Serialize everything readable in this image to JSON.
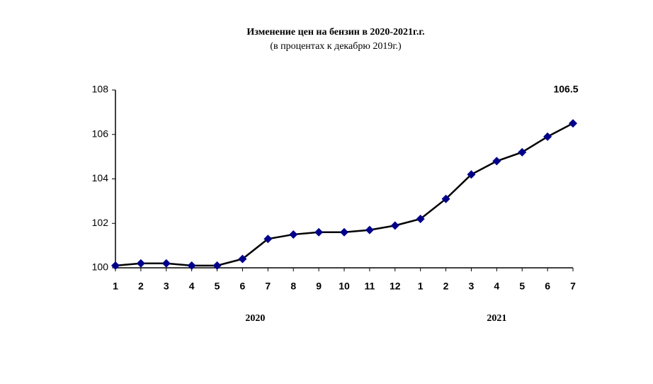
{
  "chart_data": {
    "type": "line",
    "title": "Изменение цен на бензин в 2020-2021г.г.",
    "subtitle": "(в процентах к декабрю 2019г.)",
    "categories": [
      "1",
      "2",
      "3",
      "4",
      "5",
      "6",
      "7",
      "8",
      "9",
      "10",
      "11",
      "12",
      "1",
      "2",
      "3",
      "4",
      "5",
      "6",
      "7"
    ],
    "category_groups": [
      "2020",
      "2021"
    ],
    "values": [
      100.1,
      100.2,
      100.2,
      100.1,
      100.1,
      100.4,
      101.3,
      101.5,
      101.6,
      101.6,
      101.7,
      101.9,
      102.2,
      103.1,
      104.2,
      104.8,
      105.2,
      105.9,
      106.5
    ],
    "line_color": "#000000",
    "marker_color": "#00008b",
    "ylim": [
      100,
      108
    ],
    "yticks": [
      100,
      102,
      104,
      106,
      108
    ]
  }
}
